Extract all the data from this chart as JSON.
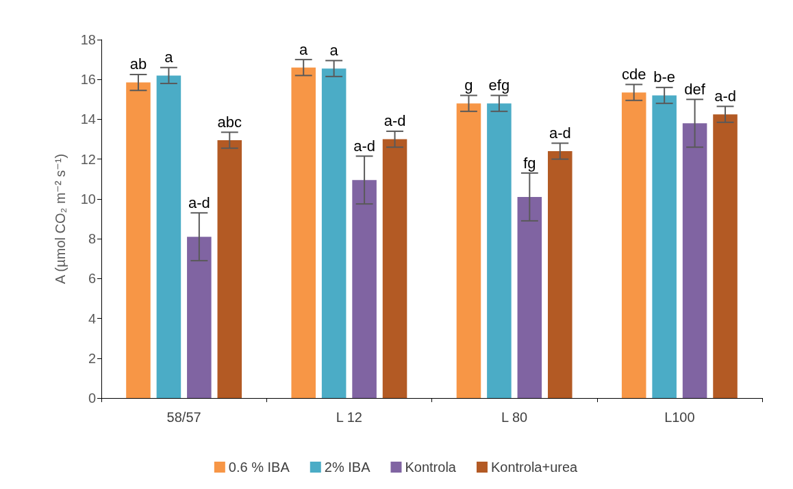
{
  "chart_data": {
    "type": "bar",
    "ylabel": "A (µmol CO₂ m⁻² s⁻¹)",
    "categories": [
      "58/57",
      "L 12",
      "L 80",
      "L100"
    ],
    "series": [
      {
        "name": "0.6 % IBA",
        "color": "#f79646",
        "values": [
          15.85,
          16.6,
          14.8,
          15.35
        ],
        "errors": [
          0.4,
          0.4,
          0.4,
          0.4
        ],
        "value_labels": [
          "ab",
          "a",
          "g",
          "cde"
        ]
      },
      {
        "name": "2% IBA",
        "color": "#4bacc6",
        "values": [
          16.2,
          16.55,
          14.8,
          15.2
        ],
        "errors": [
          0.4,
          0.4,
          0.4,
          0.4
        ],
        "value_labels": [
          "a",
          "a",
          "efg",
          "b-e"
        ]
      },
      {
        "name": "Kontrola",
        "color": "#8064a2",
        "values": [
          8.1,
          10.95,
          10.1,
          13.8
        ],
        "errors": [
          1.2,
          1.2,
          1.2,
          1.2
        ],
        "value_labels": [
          "a-d",
          "a-d",
          "fg",
          "def"
        ]
      },
      {
        "name": "Kontrola+urea",
        "color": "#b35a24",
        "values": [
          12.95,
          13.0,
          12.4,
          14.25
        ],
        "errors": [
          0.4,
          0.4,
          0.4,
          0.4
        ],
        "value_labels": [
          "abc",
          "a-d",
          "a-d",
          "a-d"
        ]
      }
    ],
    "ylim": [
      0,
      18
    ],
    "yticks": [
      0,
      2,
      4,
      6,
      8,
      10,
      12,
      14,
      16,
      18
    ],
    "grid": false,
    "legend": "bottom"
  }
}
